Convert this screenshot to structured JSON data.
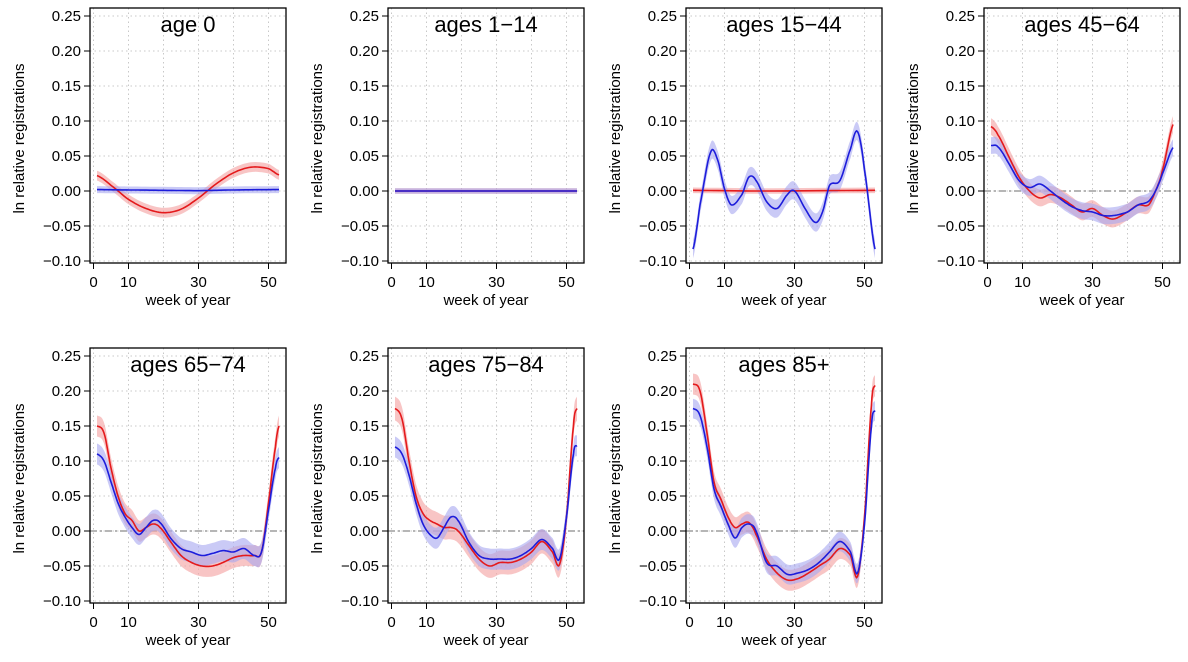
{
  "colors": {
    "series_a": "#e41a1c",
    "series_b": "#1d1ddb",
    "band_a": "#f4a6a6",
    "band_b": "#a6a6f0",
    "grid": "#c8c8c8",
    "zero_line": "#8a8a8a"
  },
  "chart_data": [
    {
      "type": "line",
      "title": "age 0",
      "xlabel": "week of year",
      "ylabel": "ln relative registrations",
      "xlim": [
        0,
        53
      ],
      "ylim": [
        -0.1,
        0.25
      ],
      "xticks": [
        "0",
        "10",
        "30",
        "50"
      ],
      "yticks": [
        "−0.10",
        "−0.05",
        "0.00",
        "0.05",
        "0.10",
        "0.15",
        "0.20",
        "0.25"
      ],
      "grid": true,
      "zero_line": false,
      "series": [
        {
          "color": "red",
          "band": 0.007,
          "x": [
            1,
            5,
            10,
            15,
            20,
            25,
            30,
            35,
            40,
            45,
            50,
            53
          ],
          "values": [
            0.022,
            0.008,
            -0.012,
            -0.025,
            -0.031,
            -0.026,
            -0.01,
            0.01,
            0.026,
            0.034,
            0.032,
            0.023
          ]
        },
        {
          "color": "blue",
          "band": 0.005,
          "x": [
            1,
            10,
            20,
            30,
            40,
            53
          ],
          "values": [
            0.002,
            0.0015,
            0.001,
            0.0005,
            0.0015,
            0.002
          ]
        }
      ]
    },
    {
      "type": "line",
      "title": "ages 1−14",
      "xlabel": "week of year",
      "ylabel": "ln relative registrations",
      "xlim": [
        0,
        53
      ],
      "ylim": [
        -0.1,
        0.25
      ],
      "xticks": [
        "0",
        "10",
        "30",
        "50"
      ],
      "yticks": [
        "−0.10",
        "−0.05",
        "0.00",
        "0.05",
        "0.10",
        "0.15",
        "0.20",
        "0.25"
      ],
      "grid": true,
      "zero_line": false,
      "series": [
        {
          "color": "red",
          "band": 0.004,
          "x": [
            1,
            20,
            53
          ],
          "values": [
            0.0,
            0.0,
            0.0
          ]
        },
        {
          "color": "blue",
          "band": 0.004,
          "x": [
            1,
            20,
            53
          ],
          "values": [
            0.0,
            0.0,
            0.0
          ]
        }
      ]
    },
    {
      "type": "line",
      "title": "ages 15−44",
      "xlabel": "week of year",
      "ylabel": "ln relative registrations",
      "xlim": [
        0,
        53
      ],
      "ylim": [
        -0.1,
        0.25
      ],
      "xticks": [
        "0",
        "10",
        "30",
        "50"
      ],
      "yticks": [
        "−0.10",
        "−0.05",
        "0.00",
        "0.05",
        "0.10",
        "0.15",
        "0.20",
        "0.25"
      ],
      "grid": true,
      "zero_line": false,
      "series": [
        {
          "color": "red",
          "band": 0.004,
          "x": [
            1,
            20,
            53
          ],
          "values": [
            0.001,
            0.0,
            0.001
          ]
        },
        {
          "color": "blue",
          "band": 0.013,
          "x": [
            1,
            3,
            6,
            8,
            10,
            12,
            15,
            17,
            19,
            22,
            25,
            28,
            30,
            33,
            36,
            38,
            40,
            43,
            46,
            48,
            50,
            53
          ],
          "values": [
            -0.083,
            -0.02,
            0.055,
            0.045,
            0.003,
            -0.02,
            -0.005,
            0.02,
            0.015,
            -0.015,
            -0.025,
            -0.005,
            0.0,
            -0.025,
            -0.045,
            -0.03,
            0.008,
            0.015,
            0.06,
            0.085,
            0.03,
            -0.083
          ]
        }
      ]
    },
    {
      "type": "line",
      "title": "ages 45−64",
      "xlabel": "week of year",
      "ylabel": "ln relative registrations",
      "xlim": [
        0,
        53
      ],
      "ylim": [
        -0.1,
        0.25
      ],
      "xticks": [
        "0",
        "10",
        "30",
        "50"
      ],
      "yticks": [
        "−0.10",
        "−0.05",
        "0.00",
        "0.05",
        "0.10",
        "0.15",
        "0.20",
        "0.25"
      ],
      "grid": true,
      "zero_line": true,
      "series": [
        {
          "color": "red",
          "band": 0.012,
          "x": [
            1,
            3,
            6,
            9,
            12,
            15,
            18,
            21,
            24,
            27,
            30,
            33,
            36,
            40,
            43,
            46,
            48,
            50,
            53
          ],
          "values": [
            0.092,
            0.08,
            0.05,
            0.02,
            0.0,
            -0.01,
            -0.005,
            -0.01,
            -0.02,
            -0.03,
            -0.025,
            -0.035,
            -0.04,
            -0.03,
            -0.02,
            -0.02,
            0.0,
            0.03,
            0.095
          ]
        },
        {
          "color": "blue",
          "band": 0.012,
          "x": [
            1,
            3,
            6,
            9,
            12,
            15,
            18,
            21,
            24,
            27,
            30,
            33,
            36,
            40,
            43,
            46,
            48,
            50,
            53
          ],
          "values": [
            0.065,
            0.063,
            0.04,
            0.015,
            0.005,
            0.01,
            0.0,
            -0.012,
            -0.022,
            -0.028,
            -0.03,
            -0.035,
            -0.035,
            -0.03,
            -0.02,
            -0.015,
            0.0,
            0.025,
            0.062
          ]
        }
      ]
    },
    {
      "type": "line",
      "title": "ages 65−74",
      "xlabel": "week of year",
      "ylabel": "ln relative registrations",
      "xlim": [
        0,
        53
      ],
      "ylim": [
        -0.1,
        0.25
      ],
      "xticks": [
        "0",
        "10",
        "30",
        "50"
      ],
      "yticks": [
        "−0.10",
        "−0.05",
        "0.00",
        "0.05",
        "0.10",
        "0.15",
        "0.20",
        "0.25"
      ],
      "grid": true,
      "zero_line": true,
      "series": [
        {
          "color": "red",
          "band": 0.015,
          "x": [
            1,
            3,
            5,
            7,
            9,
            11,
            13,
            15,
            17,
            19,
            22,
            25,
            28,
            31,
            34,
            37,
            40,
            43,
            46,
            48,
            50,
            52,
            53
          ],
          "values": [
            0.15,
            0.14,
            0.09,
            0.05,
            0.025,
            0.015,
            0.0,
            0.005,
            0.01,
            0.005,
            -0.015,
            -0.035,
            -0.045,
            -0.05,
            -0.05,
            -0.045,
            -0.038,
            -0.035,
            -0.035,
            -0.03,
            0.04,
            0.12,
            0.15
          ]
        },
        {
          "color": "blue",
          "band": 0.015,
          "x": [
            1,
            3,
            5,
            7,
            9,
            11,
            13,
            15,
            17,
            19,
            22,
            25,
            28,
            31,
            34,
            37,
            40,
            43,
            46,
            48,
            50,
            52,
            53
          ],
          "values": [
            0.11,
            0.1,
            0.07,
            0.04,
            0.02,
            0.005,
            -0.005,
            0.005,
            0.015,
            0.012,
            -0.01,
            -0.025,
            -0.03,
            -0.035,
            -0.032,
            -0.028,
            -0.03,
            -0.025,
            -0.035,
            -0.03,
            0.03,
            0.09,
            0.105
          ]
        }
      ]
    },
    {
      "type": "line",
      "title": "ages 75−84",
      "xlabel": "week of year",
      "ylabel": "ln relative registrations",
      "xlim": [
        0,
        53
      ],
      "ylim": [
        -0.1,
        0.25
      ],
      "xticks": [
        "0",
        "10",
        "30",
        "50"
      ],
      "yticks": [
        "−0.10",
        "−0.05",
        "0.00",
        "0.05",
        "0.10",
        "0.15",
        "0.20",
        "0.25"
      ],
      "grid": true,
      "zero_line": true,
      "series": [
        {
          "color": "red",
          "band": 0.017,
          "x": [
            1,
            3,
            5,
            7,
            9,
            11,
            13,
            15,
            17,
            19,
            22,
            25,
            28,
            31,
            34,
            37,
            40,
            43,
            46,
            48,
            50,
            52,
            53
          ],
          "values": [
            0.175,
            0.16,
            0.1,
            0.05,
            0.025,
            0.015,
            0.01,
            0.005,
            0.005,
            0.0,
            -0.02,
            -0.04,
            -0.05,
            -0.045,
            -0.045,
            -0.04,
            -0.03,
            -0.015,
            -0.03,
            -0.048,
            0.02,
            0.15,
            0.175
          ]
        },
        {
          "color": "blue",
          "band": 0.015,
          "x": [
            1,
            3,
            5,
            7,
            9,
            11,
            13,
            15,
            17,
            19,
            22,
            25,
            28,
            31,
            34,
            37,
            40,
            43,
            46,
            48,
            50,
            52,
            53
          ],
          "values": [
            0.12,
            0.11,
            0.08,
            0.04,
            0.01,
            -0.005,
            -0.01,
            0.005,
            0.02,
            0.015,
            -0.015,
            -0.035,
            -0.04,
            -0.04,
            -0.04,
            -0.035,
            -0.025,
            -0.012,
            -0.025,
            -0.04,
            0.02,
            0.11,
            0.122
          ]
        }
      ]
    },
    {
      "type": "line",
      "title": "ages 85+",
      "xlabel": "week of year",
      "ylabel": "ln relative registrations",
      "xlim": [
        0,
        53
      ],
      "ylim": [
        -0.1,
        0.25
      ],
      "xticks": [
        "0",
        "10",
        "30",
        "50"
      ],
      "yticks": [
        "−0.10",
        "−0.05",
        "0.00",
        "0.05",
        "0.10",
        "0.15",
        "0.20",
        "0.25"
      ],
      "grid": true,
      "zero_line": true,
      "series": [
        {
          "color": "red",
          "band": 0.015,
          "x": [
            1,
            3,
            5,
            7,
            9,
            11,
            13,
            15,
            17,
            19,
            22,
            25,
            28,
            31,
            34,
            37,
            40,
            43,
            46,
            48,
            50,
            52,
            53
          ],
          "values": [
            0.21,
            0.2,
            0.14,
            0.07,
            0.045,
            0.02,
            0.005,
            0.01,
            0.012,
            -0.005,
            -0.04,
            -0.06,
            -0.07,
            -0.068,
            -0.06,
            -0.05,
            -0.04,
            -0.025,
            -0.035,
            -0.065,
            0.02,
            0.18,
            0.208
          ]
        },
        {
          "color": "blue",
          "band": 0.014,
          "x": [
            1,
            3,
            5,
            7,
            9,
            11,
            13,
            15,
            17,
            19,
            22,
            25,
            28,
            31,
            34,
            37,
            40,
            43,
            46,
            48,
            50,
            52,
            53
          ],
          "values": [
            0.175,
            0.165,
            0.12,
            0.06,
            0.035,
            0.01,
            -0.01,
            0.005,
            0.01,
            0.0,
            -0.045,
            -0.05,
            -0.062,
            -0.06,
            -0.055,
            -0.045,
            -0.03,
            -0.015,
            -0.03,
            -0.06,
            0.01,
            0.15,
            0.172
          ]
        }
      ]
    }
  ]
}
